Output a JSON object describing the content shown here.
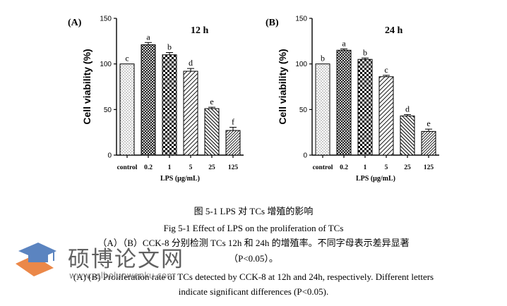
{
  "chart_data": [
    {
      "type": "bar",
      "panel_label": "(A)",
      "title": "12 h",
      "categories": [
        "control",
        "0.2",
        "1",
        "5",
        "25",
        "125"
      ],
      "values": [
        100,
        121,
        110,
        92,
        51,
        27
      ],
      "errors": [
        0,
        2.5,
        2.5,
        3,
        1.5,
        3.5
      ],
      "letters": [
        "c",
        "a",
        "b",
        "d",
        "e",
        "f"
      ],
      "xlabel": "LPS (μg/mL)",
      "ylabel": "Cell viability (%)",
      "ylim": [
        0,
        150
      ],
      "yticks": [
        "0",
        "50",
        "100",
        "150"
      ],
      "grid": false
    },
    {
      "type": "bar",
      "panel_label": "(B)",
      "title": "24 h",
      "categories": [
        "control",
        "0.2",
        "1",
        "5",
        "25",
        "125"
      ],
      "values": [
        100,
        115,
        105,
        86,
        43,
        26
      ],
      "errors": [
        0,
        1.5,
        1.5,
        1.5,
        1.5,
        2.5
      ],
      "letters": [
        "b",
        "a",
        "b",
        "c",
        "d",
        "e"
      ],
      "xlabel": "LPS (μg/mL)",
      "ylabel": "Cell viability (%)",
      "ylim": [
        0,
        150
      ],
      "yticks": [
        "0",
        "50",
        "100",
        "150"
      ],
      "grid": false
    }
  ],
  "caption": {
    "zh": "图 5-1 LPS 对 TCs 增殖的影响",
    "en": "Fig 5-1 Effect of LPS on the proliferation of TCs",
    "note_zh": "（A）（B）CCK-8 分别检测 TCs 12h 和 24h 的增殖率。不同字母表示差异显著",
    "note_zh_2": "（P<0.05）。",
    "note_en": "(A) (B) Proliferation rate of TCs detected by CCK-8 at 12h and 24h, respectively. Different letters",
    "note_en_2": "indicate significant differences (P<0.05)."
  },
  "watermark": {
    "text": "硕博论文网",
    "url": "www.sslbolunwenku.com"
  }
}
